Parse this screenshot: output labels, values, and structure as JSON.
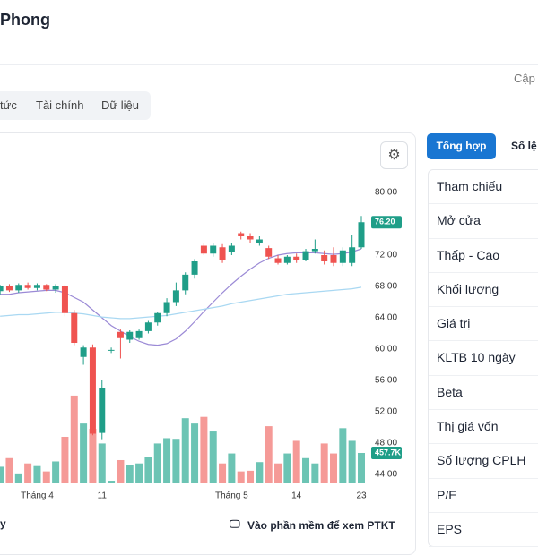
{
  "header": {
    "title": "Phong",
    "update": "Cập"
  },
  "tabs": [
    "tức",
    "Tài chính",
    "Dữ liệu"
  ],
  "footer": {
    "left": "y",
    "link": "Vào phần mềm để xem PTKT"
  },
  "side": {
    "tabs": [
      "Tổng hợp",
      "Số lệ"
    ],
    "rows": [
      "Tham chiếu",
      "Mở cửa",
      "Thấp - Cao",
      "Khối lượng",
      "Giá trị",
      "KLTB 10 ngày",
      "Beta",
      "Thị giá vốn",
      "Số lượng CPLH",
      "P/E",
      "EPS"
    ]
  },
  "chart_data": {
    "type": "candlestick",
    "categories": [
      null,
      null,
      null,
      null,
      "Tháng 4",
      null,
      null,
      null,
      null,
      null,
      null,
      "11",
      null,
      null,
      null,
      null,
      null,
      null,
      null,
      null,
      null,
      null,
      null,
      null,
      null,
      "Tháng 5",
      null,
      null,
      null,
      null,
      null,
      null,
      "14",
      null,
      null,
      null,
      null,
      null,
      null,
      "23"
    ],
    "open": [
      67.4,
      68.0,
      67.5,
      68.2,
      67.8,
      68.2,
      67.6,
      68.1,
      64.6,
      59.0,
      60.2,
      49.3,
      59.8,
      62.2,
      61.2,
      61.4,
      62.3,
      63.4,
      64.6,
      66.0,
      67.5,
      69.5,
      73.2,
      72.2,
      73.0,
      72.4,
      74.8,
      74.4,
      73.6,
      72.9,
      71.6,
      71.0,
      71.8,
      71.4,
      72.5,
      72.0,
      72.0,
      71.0,
      71.0,
      73.0
    ],
    "high": [
      68.2,
      68.3,
      68.4,
      68.5,
      68.4,
      68.3,
      68.3,
      68.2,
      65.0,
      60.5,
      60.6,
      56.0,
      60.2,
      62.5,
      62.4,
      62.5,
      63.6,
      64.8,
      66.5,
      68.5,
      69.8,
      71.5,
      73.5,
      73.5,
      73.4,
      73.6,
      75.0,
      74.8,
      74.4,
      73.2,
      72.0,
      72.0,
      72.2,
      72.8,
      74.0,
      72.6,
      73.0,
      73.0,
      74.6,
      77.0
    ],
    "low": [
      67.0,
      67.3,
      67.2,
      67.6,
      67.5,
      67.4,
      67.2,
      64.2,
      60.5,
      58.0,
      49.0,
      48.5,
      59.5,
      58.8,
      60.8,
      61.2,
      62.0,
      63.0,
      64.2,
      65.5,
      67.0,
      69.0,
      72.0,
      71.8,
      71.0,
      72.0,
      74.0,
      73.6,
      73.2,
      71.5,
      70.8,
      70.8,
      71.0,
      71.2,
      72.2,
      70.8,
      70.6,
      70.6,
      70.6,
      72.8
    ],
    "close": [
      68.0,
      67.5,
      68.2,
      67.8,
      68.2,
      67.6,
      68.1,
      64.6,
      60.8,
      60.2,
      49.2,
      55.0,
      59.9,
      61.4,
      62.2,
      62.3,
      63.4,
      64.6,
      66.0,
      67.5,
      69.5,
      71.2,
      72.2,
      73.2,
      71.4,
      73.2,
      74.4,
      74.0,
      74.0,
      71.8,
      71.0,
      71.8,
      71.4,
      72.5,
      72.8,
      71.2,
      71.0,
      72.6,
      73.0,
      76.2
    ],
    "volume": [
      250,
      380,
      150,
      300,
      260,
      180,
      330,
      700,
      1320,
      900,
      820,
      600,
      40,
      350,
      280,
      300,
      400,
      600,
      680,
      670,
      980,
      900,
      1000,
      780,
      300,
      450,
      180,
      190,
      320,
      860,
      300,
      450,
      640,
      380,
      300,
      600,
      450,
      830,
      640,
      457.7
    ],
    "series": [
      {
        "color": "#9b8ad6",
        "values": [
          67,
          67,
          67.2,
          67.3,
          67.4,
          67.5,
          67.5,
          67.2,
          66.6,
          66,
          65,
          64,
          63,
          62.3,
          61.6,
          61,
          60.6,
          60.5,
          60.7,
          61.3,
          62.3,
          63.5,
          64.8,
          66,
          67.2,
          68.3,
          69.3,
          70.2,
          71,
          71.6,
          72,
          72.2,
          72.3,
          72.3,
          72.3,
          72.2,
          72.1,
          72.2,
          72.4,
          72.8
        ]
      },
      {
        "color": "#a9d8f2",
        "values": [
          64.2,
          64.3,
          64.4,
          64.4,
          64.5,
          64.6,
          64.7,
          64.7,
          64.6,
          64.5,
          64.3,
          64.1,
          64,
          63.9,
          63.9,
          64,
          64.1,
          64.2,
          64.3,
          64.5,
          64.7,
          64.9,
          65.1,
          65.3,
          65.5,
          65.8,
          66,
          66.2,
          66.4,
          66.6,
          66.8,
          67,
          67.1,
          67.2,
          67.3,
          67.4,
          67.5,
          67.6,
          67.7,
          67.9
        ]
      }
    ],
    "up_color": "#1f9e88",
    "down_color": "#ef5350",
    "vol_up_color": "#6cc4b4",
    "vol_down_color": "#f59a97",
    "ylim": [
      44,
      80
    ],
    "yticks": [
      {
        "value": 44,
        "label": "44.00"
      },
      {
        "value": 48,
        "label": "48.00"
      },
      {
        "value": 52,
        "label": "52.00"
      },
      {
        "value": 56,
        "label": "56.00"
      },
      {
        "value": 60,
        "label": "60.00"
      },
      {
        "value": 64,
        "label": "64.00"
      },
      {
        "value": 68,
        "label": "68.00"
      },
      {
        "value": 72,
        "label": "72.00"
      },
      {
        "value": 76,
        "label": "76.00"
      },
      {
        "value": 80,
        "label": "80.00"
      }
    ],
    "vlim": [
      0,
      1615
    ],
    "price_tag": {
      "value": 76.2,
      "label": "76.20"
    },
    "volume_tag": {
      "value": 457.7,
      "label": "457.7K"
    }
  }
}
